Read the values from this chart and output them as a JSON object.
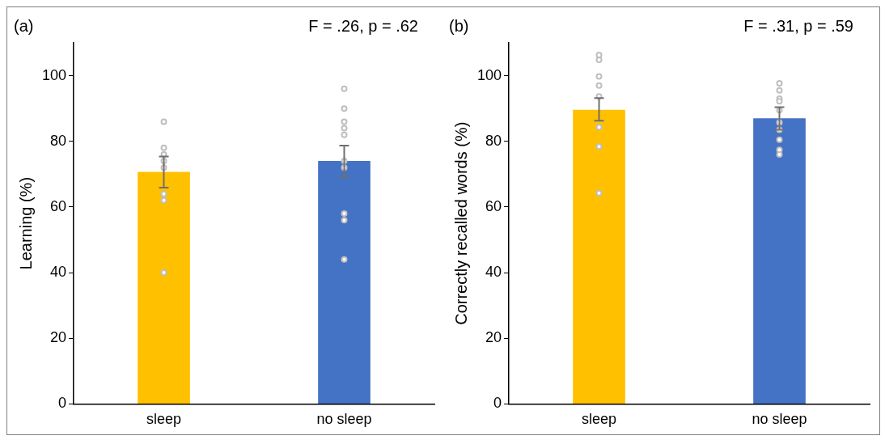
{
  "chart_data": [
    {
      "type": "bar",
      "ylabel": "Learning (%)",
      "categories": [
        "sleep",
        "no sleep"
      ],
      "ylim": [
        0,
        110
      ],
      "yticks": [
        0,
        20,
        40,
        60,
        80,
        100
      ],
      "grid": false,
      "legend": false,
      "annotations": [
        "(a)",
        "F = .26, p = .62"
      ],
      "series": [
        {
          "colors": [
            "#ffc000",
            "#4472c4"
          ],
          "values": [
            70.7,
            74.0
          ],
          "errors": [
            [
              65.9,
              75.4
            ],
            [
              69.3,
              78.7
            ]
          ]
        },
        {
          "type": "scatter",
          "color": "#bfbfbf",
          "marker": "circle",
          "x": [
            "sleep",
            "sleep",
            "sleep",
            "sleep",
            "sleep",
            "sleep",
            "sleep",
            "sleep",
            "no sleep",
            "no sleep",
            "no sleep",
            "no sleep",
            "no sleep",
            "no sleep",
            "no sleep",
            "no sleep",
            "no sleep",
            "no sleep"
          ],
          "values": [
            86,
            78,
            76,
            74,
            72,
            64,
            62,
            40,
            96,
            90,
            86,
            84,
            82,
            74,
            72,
            58,
            56,
            44
          ]
        }
      ]
    },
    {
      "type": "bar",
      "ylabel": "Correctly recalled words (%)",
      "categories": [
        "sleep",
        "no sleep"
      ],
      "ylim": [
        0,
        110
      ],
      "yticks": [
        0,
        20,
        40,
        60,
        80,
        100
      ],
      "grid": false,
      "legend": false,
      "annotations": [
        "(b)",
        "F = .31, p = .59"
      ],
      "series": [
        {
          "colors": [
            "#ffc000",
            "#4472c4"
          ],
          "values": [
            89.6,
            87.0
          ],
          "errors": [
            [
              86.3,
              93.2
            ],
            [
              83.5,
              90.4
            ]
          ]
        },
        {
          "type": "scatter",
          "color": "#bfbfbf",
          "marker": "circle",
          "x": [
            "sleep",
            "sleep",
            "sleep",
            "sleep",
            "sleep",
            "sleep",
            "sleep",
            "sleep",
            "no sleep",
            "no sleep",
            "no sleep",
            "no sleep",
            "no sleep",
            "no sleep",
            "no sleep",
            "no sleep",
            "no sleep",
            "no sleep"
          ],
          "values": [
            106.3,
            104.8,
            99.8,
            97,
            93.7,
            84.3,
            78.4,
            64.2,
            97.7,
            95.5,
            93.0,
            92.2,
            89.5,
            85.7,
            83.5,
            80.5,
            77.4,
            76.0
          ]
        }
      ]
    }
  ]
}
